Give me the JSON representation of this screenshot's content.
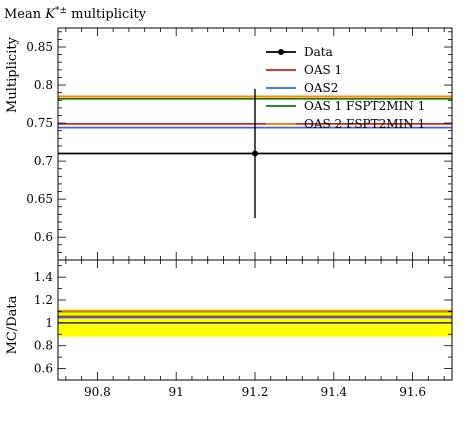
{
  "chart_data": [
    {
      "type": "line",
      "title_prefix": "Mean ",
      "title_symbol": "K",
      "title_sup": "*±",
      "title_suffix": " multiplicity",
      "ylabel": "Multiplicity",
      "xlim": [
        90.7,
        91.7
      ],
      "ylim": [
        0.57,
        0.875
      ],
      "xticks": [
        90.8,
        91,
        91.2,
        91.4,
        91.6
      ],
      "xticklabels": [
        "90.8",
        "91",
        "91.2",
        "91.4",
        "91.6"
      ],
      "yticks": [
        0.6,
        0.65,
        0.7,
        0.75,
        0.8,
        0.85
      ],
      "yticklabels": [
        "0.6",
        "0.65",
        "0.7",
        "0.75",
        "0.8",
        "0.85"
      ],
      "legend_position": "top-right",
      "data_point": {
        "label": "Data",
        "x": 91.2,
        "y": 0.71,
        "y_err_low": 0.085,
        "y_err_high": 0.085,
        "color": "#000000"
      },
      "series": [
        {
          "name": "OAS 1",
          "y": 0.749,
          "color": "#cc2222"
        },
        {
          "name": "OAS2",
          "y": 0.744,
          "color": "#3366ee"
        },
        {
          "name": "OAS 1 FSPT2MIN 1",
          "y": 0.782,
          "color": "#117711"
        },
        {
          "name": "OAS 2 FSPT2MIN 1",
          "y": 0.785,
          "color": "#ff8800"
        }
      ]
    },
    {
      "type": "line",
      "ylabel": "MC/Data",
      "xlim": [
        90.7,
        91.7
      ],
      "ylim": [
        0.5,
        1.55
      ],
      "yticks": [
        0.6,
        0.8,
        1,
        1.2,
        1.4
      ],
      "yticklabels": [
        "0.6",
        "0.8",
        "1",
        "1.2",
        "1.4"
      ],
      "band": {
        "low": 0.88,
        "high": 1.12,
        "color": "#ffff00"
      },
      "series": [
        {
          "name": "OAS 1",
          "y": 1.055,
          "color": "#cc2222"
        },
        {
          "name": "OAS2",
          "y": 1.047,
          "color": "#3366ee"
        },
        {
          "name": "OAS 1 FSPT2MIN 1",
          "y": 1.1,
          "color": "#117711"
        },
        {
          "name": "OAS 2 FSPT2MIN 1",
          "y": 1.105,
          "color": "#ff8800"
        }
      ]
    }
  ]
}
